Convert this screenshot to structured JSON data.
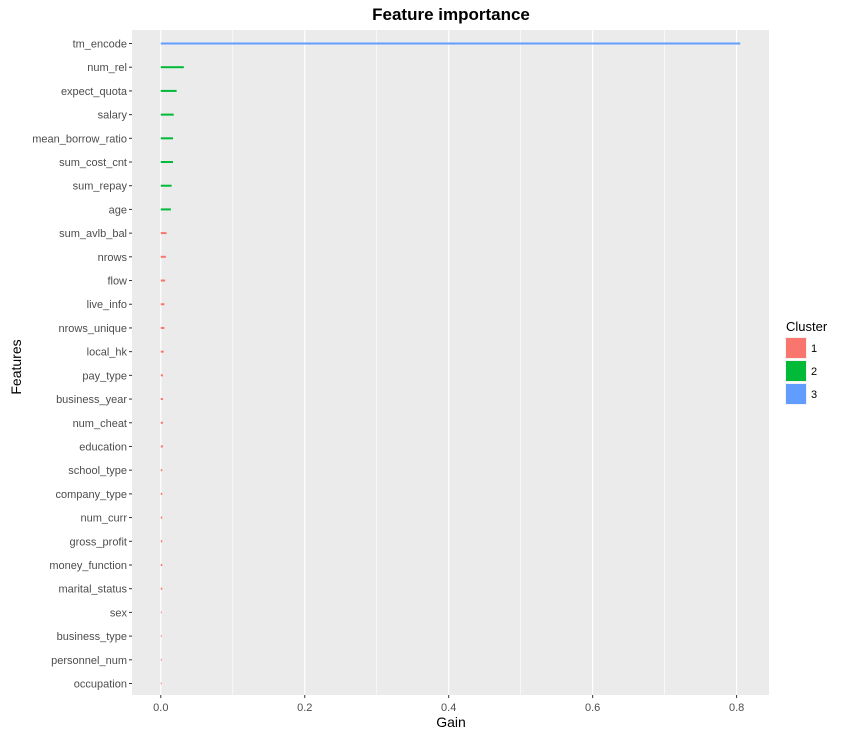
{
  "chart_data": {
    "type": "bar",
    "orientation": "horizontal",
    "title": "Feature importance",
    "xlabel": "Gain",
    "ylabel": "Features",
    "xlim": [
      -0.04,
      0.845
    ],
    "x_ticks": [
      "0.0",
      "0.2",
      "0.4",
      "0.6",
      "0.8"
    ],
    "x_tick_values": [
      0.0,
      0.2,
      0.4,
      0.6,
      0.8
    ],
    "grid": true,
    "legend": {
      "title": "Cluster",
      "position": "right",
      "entries": [
        {
          "label": "1",
          "color": "#F8766D"
        },
        {
          "label": "2",
          "color": "#00BA38"
        },
        {
          "label": "3",
          "color": "#619CFF"
        }
      ]
    },
    "bars": [
      {
        "feature": "tm_encode",
        "gain": 0.805,
        "cluster": "3"
      },
      {
        "feature": "num_rel",
        "gain": 0.032,
        "cluster": "2"
      },
      {
        "feature": "expect_quota",
        "gain": 0.022,
        "cluster": "2"
      },
      {
        "feature": "salary",
        "gain": 0.018,
        "cluster": "2"
      },
      {
        "feature": "mean_borrow_ratio",
        "gain": 0.017,
        "cluster": "2"
      },
      {
        "feature": "sum_cost_cnt",
        "gain": 0.017,
        "cluster": "2"
      },
      {
        "feature": "sum_repay",
        "gain": 0.015,
        "cluster": "2"
      },
      {
        "feature": "age",
        "gain": 0.014,
        "cluster": "2"
      },
      {
        "feature": "sum_avlb_bal",
        "gain": 0.008,
        "cluster": "1"
      },
      {
        "feature": "nrows",
        "gain": 0.007,
        "cluster": "1"
      },
      {
        "feature": "flow",
        "gain": 0.006,
        "cluster": "1"
      },
      {
        "feature": "live_info",
        "gain": 0.005,
        "cluster": "1"
      },
      {
        "feature": "nrows_unique",
        "gain": 0.005,
        "cluster": "1"
      },
      {
        "feature": "local_hk",
        "gain": 0.004,
        "cluster": "1"
      },
      {
        "feature": "pay_type",
        "gain": 0.003,
        "cluster": "1"
      },
      {
        "feature": "business_year",
        "gain": 0.003,
        "cluster": "1"
      },
      {
        "feature": "num_cheat",
        "gain": 0.003,
        "cluster": "1"
      },
      {
        "feature": "education",
        "gain": 0.003,
        "cluster": "1"
      },
      {
        "feature": "school_type",
        "gain": 0.002,
        "cluster": "1"
      },
      {
        "feature": "company_type",
        "gain": 0.002,
        "cluster": "1"
      },
      {
        "feature": "num_curr",
        "gain": 0.002,
        "cluster": "1"
      },
      {
        "feature": "gross_profit",
        "gain": 0.002,
        "cluster": "1"
      },
      {
        "feature": "money_function",
        "gain": 0.002,
        "cluster": "1"
      },
      {
        "feature": "marital_status",
        "gain": 0.002,
        "cluster": "1"
      },
      {
        "feature": "sex",
        "gain": 0.001,
        "cluster": "1"
      },
      {
        "feature": "business_type",
        "gain": 0.001,
        "cluster": "1"
      },
      {
        "feature": "personnel_num",
        "gain": 0.001,
        "cluster": "1"
      },
      {
        "feature": "occupation",
        "gain": 0.001,
        "cluster": "1"
      }
    ]
  }
}
